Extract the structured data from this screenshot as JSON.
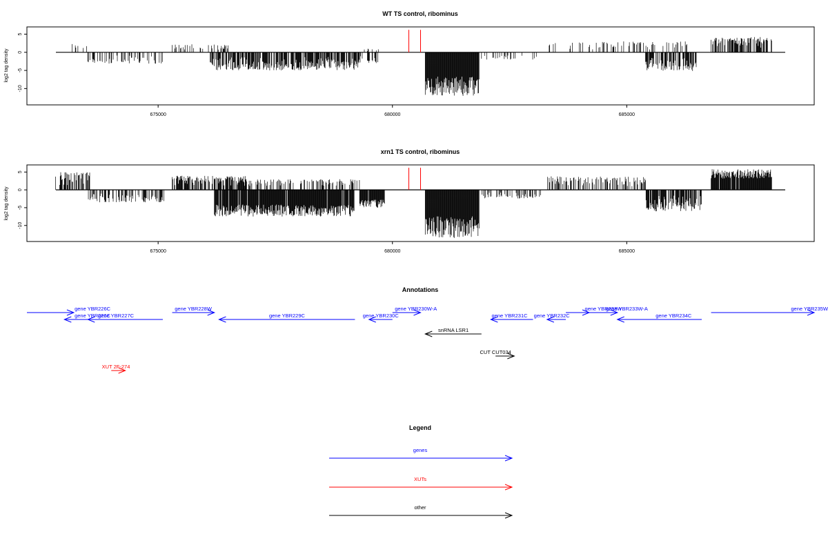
{
  "chart_data": [
    {
      "type": "bar",
      "title": "WT TS control, ribominus",
      "xlabel": "",
      "ylabel": "log2 tag density",
      "xlim": [
        672200,
        689000
      ],
      "ylim": [
        -14.5,
        7
      ],
      "x_ticks": [
        675000,
        680000,
        685000
      ],
      "x_tick_labels": [
        "675000",
        "680000",
        "685000"
      ],
      "y_ticks": [
        5,
        0,
        -5,
        -10
      ],
      "y_tick_labels": [
        "5",
        "0",
        "-5",
        "-10"
      ],
      "grid": false,
      "segments": [
        {
          "start": 673100,
          "end": 673550,
          "strand": "+",
          "max": 2.4,
          "density": 0.25
        },
        {
          "start": 673500,
          "end": 675100,
          "strand": "-",
          "max": -3.2,
          "density": 0.35
        },
        {
          "start": 675300,
          "end": 676500,
          "strand": "+",
          "max": 2.2,
          "density": 0.3
        },
        {
          "start": 676100,
          "end": 679300,
          "strand": "-",
          "max": -5.0,
          "density": 0.75
        },
        {
          "start": 679300,
          "end": 679700,
          "strand": "-",
          "max": -3.0,
          "density": 0.55
        },
        {
          "start": 679400,
          "end": 679700,
          "strand": "+",
          "max": 1.0,
          "density": 0.25
        },
        {
          "start": 680700,
          "end": 681850,
          "strand": "-",
          "max": -12.2,
          "density": 1.0
        },
        {
          "start": 681900,
          "end": 683100,
          "strand": "-",
          "max": -2.0,
          "density": 0.2
        },
        {
          "start": 683300,
          "end": 686300,
          "strand": "+",
          "max": 3.0,
          "density": 0.18
        },
        {
          "start": 685400,
          "end": 686500,
          "strand": "-",
          "max": -5.2,
          "density": 0.7
        },
        {
          "start": 686800,
          "end": 688100,
          "strand": "+",
          "max": 4.2,
          "density": 0.6
        }
      ],
      "highlights": [
        {
          "x": 680350,
          "value": 6.2,
          "color": "#ff0000"
        },
        {
          "x": 680600,
          "value": 6.2,
          "color": "#ff0000"
        }
      ]
    },
    {
      "type": "bar",
      "title": "xrn1 TS control, ribominus",
      "xlabel": "",
      "ylabel": "log2 tag density",
      "xlim": [
        672200,
        689000
      ],
      "ylim": [
        -14.5,
        7
      ],
      "x_ticks": [
        675000,
        680000,
        685000
      ],
      "x_tick_labels": [
        "675000",
        "680000",
        "685000"
      ],
      "y_ticks": [
        5,
        0,
        -5,
        -10
      ],
      "y_tick_labels": [
        "5",
        "0",
        "-5",
        "-10"
      ],
      "grid": false,
      "segments": [
        {
          "start": 672800,
          "end": 673550,
          "strand": "+",
          "max": 5.0,
          "density": 0.6
        },
        {
          "start": 673500,
          "end": 675200,
          "strand": "-",
          "max": -3.5,
          "density": 0.5
        },
        {
          "start": 675300,
          "end": 676900,
          "strand": "+",
          "max": 4.0,
          "density": 0.75
        },
        {
          "start": 676200,
          "end": 679200,
          "strand": "-",
          "max": -7.5,
          "density": 0.95
        },
        {
          "start": 676800,
          "end": 679300,
          "strand": "+",
          "max": 3.0,
          "density": 0.35
        },
        {
          "start": 679300,
          "end": 679850,
          "strand": "-",
          "max": -5.0,
          "density": 0.95
        },
        {
          "start": 680700,
          "end": 681850,
          "strand": "-",
          "max": -13.5,
          "density": 1.0
        },
        {
          "start": 681900,
          "end": 683200,
          "strand": "-",
          "max": -2.5,
          "density": 0.3
        },
        {
          "start": 683300,
          "end": 685400,
          "strand": "+",
          "max": 3.8,
          "density": 0.45
        },
        {
          "start": 685400,
          "end": 686600,
          "strand": "-",
          "max": -6.0,
          "density": 0.85
        },
        {
          "start": 686800,
          "end": 688100,
          "strand": "+",
          "max": 5.8,
          "density": 0.95
        }
      ],
      "highlights": [
        {
          "x": 680350,
          "value": 6.2,
          "color": "#ff0000"
        },
        {
          "x": 680600,
          "value": 6.2,
          "color": "#ff0000"
        }
      ]
    }
  ],
  "annotations": {
    "title": "Annotations",
    "features": [
      {
        "label": "gene YBR226C",
        "start": 672200,
        "end": 673200,
        "dir": "+",
        "color": "#0000ff",
        "row": 0,
        "label_x": 673600
      },
      {
        "label": "gene YBR226C",
        "start": 673000,
        "end": 673500,
        "dir": "-",
        "color": "#0000ff",
        "row": 1,
        "label_x": 673600
      },
      {
        "label": "gene YBR227C",
        "start": 673500,
        "end": 675100,
        "dir": "-",
        "color": "#0000ff",
        "row": 1,
        "label_x": 674100
      },
      {
        "label": "gene YBR228W",
        "start": 675300,
        "end": 676200,
        "dir": "+",
        "color": "#0000ff",
        "row": 0,
        "label_x": 675750
      },
      {
        "label": "gene YBR229C",
        "start": 676300,
        "end": 679200,
        "dir": "-",
        "color": "#0000ff",
        "row": 1,
        "label_x": 677750
      },
      {
        "label": "gene YBR230C",
        "start": 679500,
        "end": 680000,
        "dir": "-",
        "color": "#0000ff",
        "row": 1,
        "label_x": 679750
      },
      {
        "label": "gene YBR230W-A",
        "start": 680000,
        "end": 680600,
        "dir": "+",
        "color": "#0000ff",
        "row": 0,
        "label_x": 680500
      },
      {
        "label": "snRNA LSR1",
        "start": 680700,
        "end": 681900,
        "dir": "-",
        "color": "#000000",
        "row": 2,
        "label_x": 681300
      },
      {
        "label": "gene YBR231C",
        "start": 682100,
        "end": 683000,
        "dir": "-",
        "color": "#0000ff",
        "row": 1,
        "label_x": 682500
      },
      {
        "label": "gene YBR232C",
        "start": 683300,
        "end": 683700,
        "dir": "-",
        "color": "#0000ff",
        "row": 1,
        "label_x": 683400
      },
      {
        "label": "gene YBR233W",
        "start": 683700,
        "end": 684200,
        "dir": "+",
        "color": "#0000ff",
        "row": 0,
        "label_x": 684500
      },
      {
        "label": "gene YBR233W-A",
        "start": 684200,
        "end": 684800,
        "dir": "+",
        "color": "#0000ff",
        "row": 0,
        "label_x": 685000
      },
      {
        "label": "gene YBR234C",
        "start": 684800,
        "end": 686600,
        "dir": "-",
        "color": "#0000ff",
        "row": 1,
        "label_x": 686000
      },
      {
        "label": "gene YBR235W",
        "start": 686800,
        "end": 689000,
        "dir": "+",
        "color": "#0000ff",
        "row": 0,
        "label_x": 688900
      },
      {
        "label": "CUT CUT034",
        "start": 682200,
        "end": 682600,
        "dir": "+",
        "color": "#000000",
        "row": 3,
        "label_x": 682200
      },
      {
        "label": "XUT 2F-274",
        "start": 674000,
        "end": 674300,
        "dir": "+",
        "color": "#ff0000",
        "row": 4,
        "label_x": 674100
      }
    ]
  },
  "legend": {
    "title": "Legend",
    "items": [
      {
        "label": "genes",
        "color": "#0000ff"
      },
      {
        "label": "XUTs",
        "color": "#ff0000"
      },
      {
        "label": "other",
        "color": "#000000"
      }
    ]
  }
}
